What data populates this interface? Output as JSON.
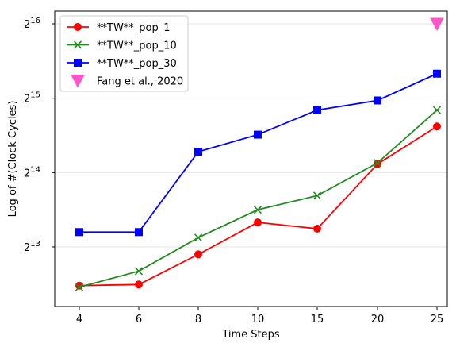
{
  "chart_data": {
    "type": "line",
    "xlabel": "Time Steps",
    "ylabel": "Log of #(Clock Cycles)",
    "xlim": [
      3.0,
      25.3
    ],
    "ylog2_lim": [
      12.15,
      16.15
    ],
    "x_ticks": [
      4,
      6,
      8,
      10,
      15,
      20,
      25
    ],
    "x_tick_labels": [
      "4",
      "6",
      "8",
      "10",
      "15",
      "20",
      "25"
    ],
    "y_ticks_log2": [
      13,
      14,
      15,
      16
    ],
    "y_tick_bases": [
      "2",
      "2",
      "2",
      "2"
    ],
    "y_tick_exponents": [
      "13",
      "14",
      "15",
      "16"
    ],
    "grid": "horizontal",
    "legend_position": "upper-left",
    "series": [
      {
        "name": "**TW**_pop_1",
        "color": "#ff0000",
        "marker": "circle",
        "x": [
          4,
          6,
          8,
          10,
          15,
          20,
          25
        ],
        "log2_y": [
          12.48,
          12.495,
          12.9,
          13.33,
          13.245,
          14.115,
          14.62
        ]
      },
      {
        "name": "**TW**_pop_10",
        "color": "#228b22",
        "marker": "x",
        "x": [
          4,
          6,
          8,
          10,
          15,
          20,
          25
        ],
        "log2_y": [
          12.46,
          12.675,
          13.125,
          13.5,
          13.69,
          14.13,
          14.84
        ]
      },
      {
        "name": "**TW**_pop_30",
        "color": "#0000ff",
        "marker": "square",
        "x": [
          4,
          6,
          8,
          10,
          15,
          20,
          25
        ],
        "log2_y": [
          13.2,
          13.2,
          14.28,
          14.51,
          14.84,
          14.97,
          15.33
        ]
      },
      {
        "name": "Fang et al., 2020",
        "color": "#ff55c8",
        "marker": "triangle-down",
        "x": [
          25
        ],
        "log2_y": [
          16.0
        ]
      }
    ]
  }
}
